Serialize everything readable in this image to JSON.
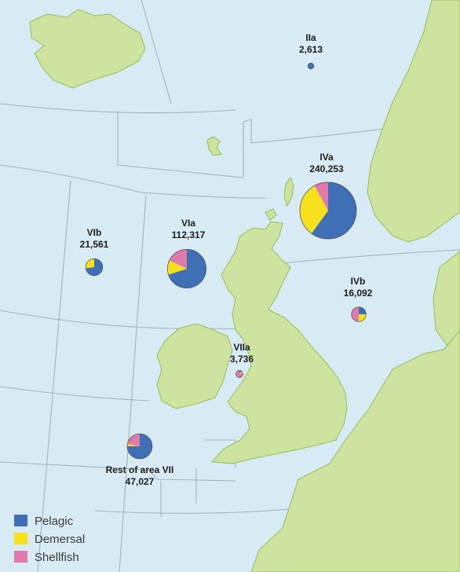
{
  "colors": {
    "sea": "#d8eaf4",
    "land": "#cfe3a1",
    "coast": "#8fbf55",
    "boundary": "#9fb4c3",
    "pelagic": "#3f6fb4",
    "demersal": "#f6e11c",
    "shellfish": "#e07aab"
  },
  "legend": [
    {
      "label": "Pelagic",
      "color": "#3f6fb4"
    },
    {
      "label": "Demersal",
      "color": "#f6e11c"
    },
    {
      "label": "Shellfish",
      "color": "#e07aab"
    }
  ],
  "areas": [
    {
      "name": "IIa",
      "value": "2,613",
      "total": 2613,
      "shares": [
        1.0,
        0.0,
        0.0
      ]
    },
    {
      "name": "IVa",
      "value": "240,253",
      "total": 240253,
      "shares": [
        0.6,
        0.32,
        0.08
      ]
    },
    {
      "name": "VIa",
      "value": "112,317",
      "total": 112317,
      "shares": [
        0.7,
        0.12,
        0.18
      ]
    },
    {
      "name": "VIb",
      "value": "21,561",
      "total": 21561,
      "shares": [
        0.73,
        0.27,
        0.0
      ]
    },
    {
      "name": "IVb",
      "value": "16,092",
      "total": 16092,
      "shares": [
        0.25,
        0.25,
        0.5
      ]
    },
    {
      "name": "VIIa",
      "value": "3,736",
      "total": 3736,
      "shares": [
        0.1,
        0.1,
        0.8
      ]
    },
    {
      "name": "Rest of area VII",
      "value": "47,027",
      "total": 47027,
      "shares": [
        0.75,
        0.03,
        0.22
      ]
    }
  ]
}
